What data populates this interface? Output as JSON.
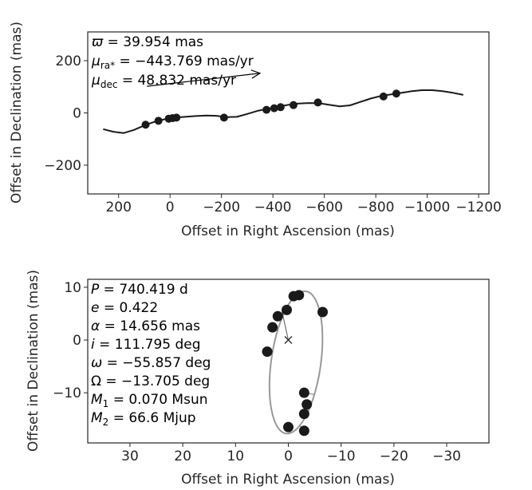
{
  "chart_data": [
    {
      "type": "scatter",
      "panel": "top",
      "xlabel": "Offset in Right Ascension (mas)",
      "ylabel": "Offset in Declination (mas)",
      "xlim": [
        320,
        -1240
      ],
      "ylim": [
        -310,
        310
      ],
      "x_ticks": [
        200,
        0,
        -200,
        -400,
        -600,
        -800,
        -1000,
        -1200
      ],
      "x_tick_labels": [
        "200",
        "0",
        "−200",
        "−400",
        "−600",
        "−800",
        "−1000",
        "−1200"
      ],
      "y_ticks": [
        200,
        0,
        -200
      ],
      "y_tick_labels": [
        "200",
        "0",
        "−200"
      ],
      "grid": false,
      "annotations": [
        {
          "symbol": "ϖ",
          "text": " = 39.954 mas"
        },
        {
          "symbol": "μ",
          "subscript": "ra*",
          "text": " = −443.769 mas/yr"
        },
        {
          "symbol": "μ",
          "subscript": "dec",
          "text": " = 48.832 mas/yr"
        }
      ],
      "proper_motion_arrow": {
        "from": [
          90,
          102
        ],
        "to": [
          -350,
          152
        ]
      },
      "track": {
        "x": [
          260,
          220,
          180,
          140,
          100,
          60,
          20,
          -20,
          -60,
          -100,
          -140,
          -180,
          -220,
          -260,
          -300,
          -340,
          -380,
          -420,
          -460,
          -500,
          -540,
          -580,
          -620,
          -660,
          -700,
          -740,
          -780,
          -820,
          -860,
          -900,
          -940,
          -980,
          -1020,
          -1060,
          -1100,
          -1140
        ],
        "y": [
          -62,
          -72,
          -77,
          -65,
          -48,
          -34,
          -24,
          -18,
          -15,
          -12,
          -10,
          -11,
          -16,
          -15,
          -4,
          8,
          16,
          24,
          31,
          36,
          38,
          37,
          31,
          25,
          29,
          42,
          55,
          65,
          71,
          77,
          83,
          87,
          87,
          83,
          77,
          69
        ]
      },
      "points": {
        "x": [
          95,
          45,
          5,
          -10,
          -25,
          -210,
          -375,
          -405,
          -430,
          -480,
          -575,
          -830,
          -880
        ],
        "y": [
          -45,
          -30,
          -22,
          -20,
          -18,
          -18,
          12,
          18,
          22,
          30,
          40,
          63,
          74
        ]
      }
    },
    {
      "type": "scatter",
      "panel": "bottom",
      "xlabel": "Offset in Right Ascension (mas)",
      "ylabel": "Offset in Declination (mas)",
      "xlim": [
        38,
        -38
      ],
      "ylim": [
        -19.5,
        11.5
      ],
      "x_ticks": [
        30,
        20,
        10,
        0,
        -10,
        -20,
        -30
      ],
      "x_tick_labels": [
        "30",
        "20",
        "10",
        "0",
        "−10",
        "−20",
        "−30"
      ],
      "y_ticks": [
        10,
        0,
        -10
      ],
      "y_tick_labels": [
        "10",
        "0",
        "−10"
      ],
      "grid": false,
      "annotations": [
        {
          "symbol": "P",
          "text": " = 740.419 d"
        },
        {
          "symbol": "e",
          "text": " = 0.422"
        },
        {
          "symbol": "α",
          "text": " = 14.656 mas"
        },
        {
          "symbol": "i",
          "text": " = 111.795 deg"
        },
        {
          "symbol": "ω",
          "text": " = −55.857 deg"
        },
        {
          "symbol": "Ω",
          "text": " = −13.705 deg"
        },
        {
          "symbol": "M",
          "subscript": "1",
          "text": " = 0.070 Msun"
        },
        {
          "symbol": "M",
          "subscript": "2",
          "text": " = 66.6 Mjup"
        }
      ],
      "center_marker": {
        "x": 0,
        "y": 0,
        "symbol": "x"
      },
      "orbit": {
        "center": [
          -1.45,
          -4.25
        ],
        "semi_major": 13.6,
        "semi_minor": 4.7,
        "tilt_deg_from_vertical": 8
      },
      "points": {
        "x": [
          -1.0,
          -2.0,
          -6.5,
          0.3,
          2.0,
          3.0,
          4.0,
          0.0,
          -3.0,
          -3.5,
          -3.0,
          -3.0
        ],
        "y": [
          8.3,
          8.5,
          5.3,
          5.7,
          4.5,
          2.4,
          -2.2,
          -16.5,
          -10.0,
          -12.2,
          -14.0,
          -17.2
        ]
      }
    }
  ]
}
